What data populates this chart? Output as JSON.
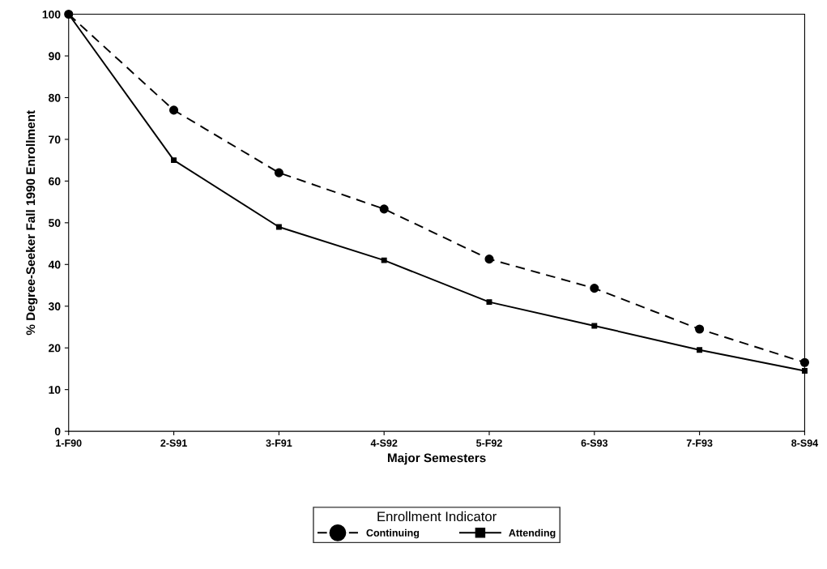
{
  "chart_data": {
    "type": "line",
    "xlabel": "Major Semesters",
    "ylabel": "% Degree-Seeker Fall 1990 Enrollment",
    "categories": [
      "1-F90",
      "2-S91",
      "3-F91",
      "4-S92",
      "5-F92",
      "6-S93",
      "7-F93",
      "8-S94"
    ],
    "series": [
      {
        "name": "Continuing",
        "color": "#000000",
        "marker": "circle",
        "line_style": "dashed",
        "values": [
          100,
          77,
          62,
          53.3,
          41.3,
          34.3,
          24.5,
          16.5
        ]
      },
      {
        "name": "Attending",
        "color": "#000000",
        "marker": "square",
        "line_style": "solid",
        "values": [
          100,
          65,
          49,
          41,
          31,
          25.3,
          19.5,
          14.5
        ]
      }
    ],
    "ylim": [
      0,
      100
    ],
    "yticks": [
      0,
      10,
      20,
      30,
      40,
      50,
      60,
      70,
      80,
      90,
      100
    ],
    "grid": false,
    "legend": "bottom",
    "legend_title": "Enrollment Indicator"
  }
}
